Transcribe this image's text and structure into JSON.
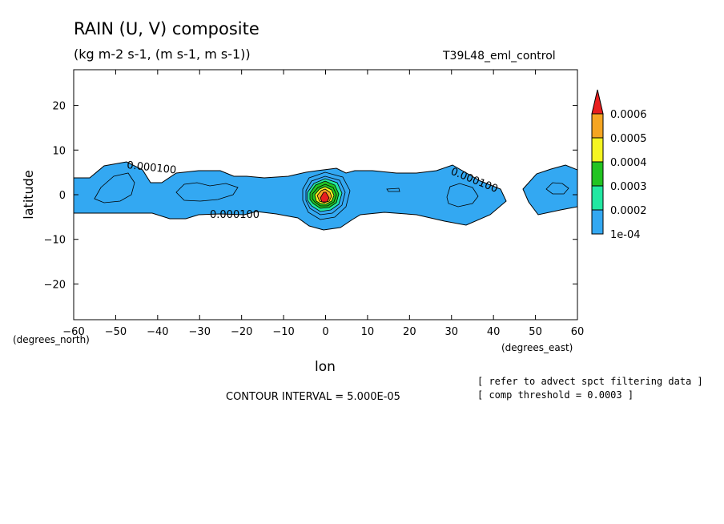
{
  "chart_data": {
    "type": "contour",
    "title": "RAIN (U, V) composite",
    "units": "(kg m-2 s-1, (m s-1, m s-1))",
    "experiment": "T39L48_eml_control",
    "xlabel": "lon",
    "ylabel": "latitude",
    "x_unit": "(degrees_east)",
    "y_unit": "(degrees_north)",
    "xlim": [
      -60,
      60
    ],
    "ylim": [
      -28,
      28
    ],
    "x_ticks": [
      -60,
      -50,
      -40,
      -30,
      -20,
      -10,
      0,
      10,
      20,
      30,
      40,
      50,
      60
    ],
    "y_ticks": [
      -20,
      -10,
      0,
      10,
      20
    ],
    "contour_interval_text": "CONTOUR INTERVAL = 5.000E-05",
    "contour_label": "0.000100",
    "notes": [
      "[ refer to advect spct filtering data ]",
      "[ comp threshold = 0.0003 ]"
    ],
    "colorbar": {
      "levels": [
        "1e-04",
        "0.0002",
        "0.0003",
        "0.0004",
        "0.0005",
        "0.0006"
      ],
      "colors": [
        "#33a8f2",
        "#22e8a2",
        "#22c422",
        "#f5f522",
        "#f5a522",
        "#e81e1e"
      ]
    },
    "features": [
      {
        "name": "rain band",
        "lon": [
          -60,
          43
        ],
        "lat": [
          -5,
          6
        ],
        "value": "1e-04"
      },
      {
        "name": "rain band east",
        "lon": [
          46,
          60
        ],
        "lat": [
          -4,
          6
        ],
        "value": "1e-04"
      },
      {
        "name": "central maximum",
        "lon": 0,
        "lat": -1,
        "value": "0.0006"
      }
    ]
  }
}
